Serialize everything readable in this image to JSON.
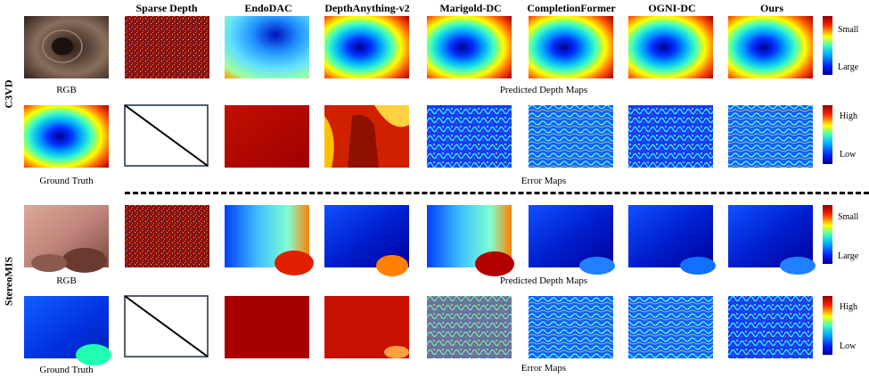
{
  "columns": [
    "Sparse Depth",
    "EndoDAC",
    "DepthAnything-v2",
    "Marigold-DC",
    "CompletionFormer",
    "OGNI-DC",
    "Ours"
  ],
  "datasets": [
    {
      "name": "C3VD",
      "rgb_label": "RGB",
      "gt_label": "Ground Truth",
      "pred_label": "Predicted Depth Maps",
      "err_label": "Error Maps"
    },
    {
      "name": "StereoMIS",
      "rgb_label": "RGB",
      "gt_label": "Ground Truth",
      "pred_label": "Predicted Depth Maps",
      "err_label": "Error Maps"
    }
  ],
  "colorbars": {
    "depth": {
      "top": "Small",
      "bottom": "Large"
    },
    "error": {
      "top": "High",
      "bottom": "Low"
    }
  },
  "colors": {
    "jet_blue": "#00008f",
    "jet_red": "#8f0000",
    "frame": "#1c2b3f"
  }
}
